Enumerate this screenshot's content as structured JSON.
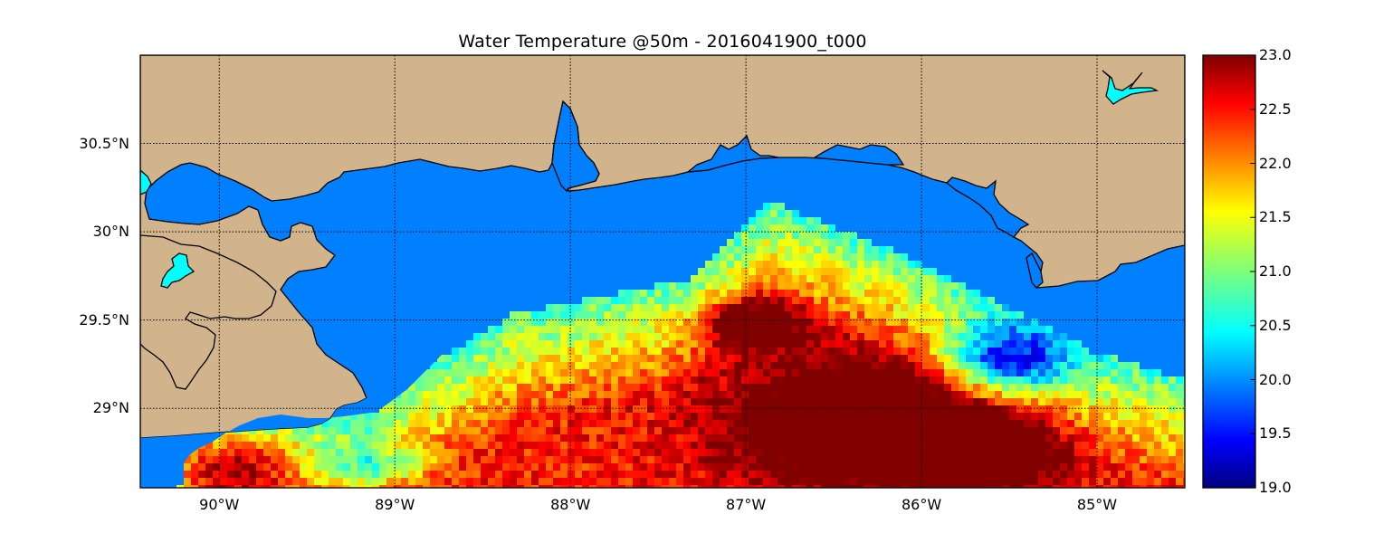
{
  "title": "Water Temperature @50m - 2016041900_t000",
  "map": {
    "lat_labels": [
      "30.5°N",
      "30°N",
      "29.5°N",
      "29°N"
    ],
    "lon_labels": [
      "90°W",
      "89°W",
      "88°W",
      "87°W",
      "86°W",
      "85°W"
    ],
    "lat_ticks": [
      30.5,
      30.0,
      29.5,
      29.0
    ],
    "lon_ticks": [
      -90,
      -89,
      -88,
      -87,
      -86,
      -85
    ],
    "lat_range": [
      28.55,
      31.0
    ],
    "lon_range": [
      -90.45,
      -84.5
    ],
    "land_color": "#D2B48C",
    "water_color": "#0080FF",
    "inland_water_color": "#00FFFF",
    "grid": true
  },
  "colorbar": {
    "labels": [
      "23.0",
      "22.5",
      "22.0",
      "21.5",
      "21.0",
      "20.5",
      "20.0",
      "19.5",
      "19.0"
    ],
    "min": 19.0,
    "max": 23.0,
    "colormap": "jet"
  }
}
